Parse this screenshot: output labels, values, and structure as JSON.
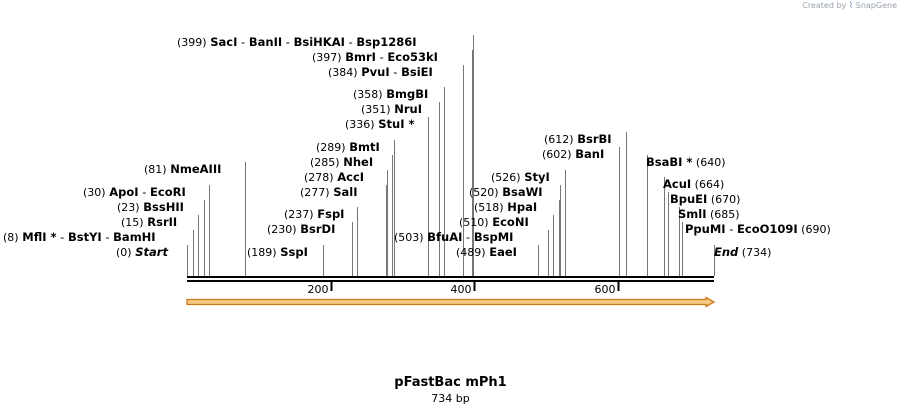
{
  "watermark": {
    "prefix": "Created by",
    "brand": "SnapGene"
  },
  "plasmid": {
    "name": "pFastBac mPh1",
    "length_label": "734 bp",
    "length": 734
  },
  "ruler": {
    "ticks": [
      200,
      400,
      600
    ]
  },
  "feature_arrow": {
    "start": 0,
    "end": 734,
    "fill": "#f5c983",
    "stroke": "#c97a1c"
  },
  "colors": {
    "line": "#000000",
    "leader": "#777777",
    "arrow_fill": "#f5c983",
    "arrow_stroke": "#c97a1c"
  },
  "labels": [
    {
      "pos": "(0)",
      "names": [
        [
          "Start",
          false
        ]
      ],
      "leaders": [
        0
      ],
      "italic": true
    },
    {
      "pos": "(8)",
      "names": [
        [
          "MflI",
          true
        ],
        [
          "BstYI",
          false
        ],
        [
          "BamHI",
          false
        ]
      ],
      "leaders": [
        8
      ]
    },
    {
      "pos": "(15)",
      "names": [
        [
          "RsrII",
          false
        ]
      ],
      "leaders": [
        15
      ]
    },
    {
      "pos": "(23)",
      "names": [
        [
          "BssHII",
          false
        ]
      ],
      "leaders": [
        23
      ]
    },
    {
      "pos": "(30)",
      "names": [
        [
          "ApoI",
          false
        ],
        [
          "EcoRI",
          false
        ]
      ],
      "leaders": [
        30
      ]
    },
    {
      "pos": "(81)",
      "names": [
        [
          "NmeAIII",
          false
        ]
      ],
      "leaders": [
        81
      ]
    },
    {
      "pos": "(189)",
      "names": [
        [
          "SspI",
          false
        ]
      ],
      "leaders": [
        189
      ]
    },
    {
      "pos": "(230)",
      "names": [
        [
          "BsrDI",
          false
        ]
      ],
      "leaders": [
        230
      ]
    },
    {
      "pos": "(237)",
      "names": [
        [
          "FspI",
          false
        ]
      ],
      "leaders": [
        237
      ]
    },
    {
      "pos": "(277)",
      "names": [
        [
          "SalI",
          false
        ]
      ],
      "leaders": [
        277
      ]
    },
    {
      "pos": "(278)",
      "names": [
        [
          "AccI",
          false
        ]
      ],
      "leaders": [
        278
      ]
    },
    {
      "pos": "(285)",
      "names": [
        [
          "NheI",
          false
        ]
      ],
      "leaders": [
        285
      ]
    },
    {
      "pos": "(289)",
      "names": [
        [
          "BmtI",
          false
        ]
      ],
      "leaders": [
        289
      ]
    },
    {
      "pos": "(336)",
      "names": [
        [
          "StuI",
          true
        ]
      ],
      "leaders": [
        336
      ]
    },
    {
      "pos": "(351)",
      "names": [
        [
          "NruI",
          false
        ]
      ],
      "leaders": [
        351
      ]
    },
    {
      "pos": "(358)",
      "names": [
        [
          "BmgBI",
          false
        ]
      ],
      "leaders": [
        358
      ]
    },
    {
      "pos": "(384)",
      "names": [
        [
          "PvuI",
          false
        ],
        [
          "BsiEI",
          false
        ]
      ],
      "leaders": [
        384
      ]
    },
    {
      "pos": "(397)",
      "names": [
        [
          "BmrI",
          false
        ],
        [
          "Eco53kI",
          false
        ]
      ],
      "leaders": [
        397
      ]
    },
    {
      "pos": "(399)",
      "names": [
        [
          "SacI",
          false
        ],
        [
          "BanII",
          false
        ],
        [
          "BsiHKAI",
          false
        ],
        [
          "Bsp1286I",
          false
        ]
      ],
      "leaders": [
        399
      ]
    },
    {
      "pos": "(503)",
      "names": [
        [
          "BfuAI",
          false
        ],
        [
          "BspMI",
          false
        ]
      ],
      "leaders": [
        503
      ]
    },
    {
      "pos": "(489)",
      "names": [
        [
          "EaeI",
          false
        ]
      ],
      "leaders": [
        489
      ]
    },
    {
      "pos": "(510)",
      "names": [
        [
          "EcoNI",
          false
        ]
      ],
      "leaders": [
        510
      ]
    },
    {
      "pos": "(518)",
      "names": [
        [
          "HpaI",
          false
        ]
      ],
      "leaders": [
        518
      ]
    },
    {
      "pos": "(520)",
      "names": [
        [
          "BsaWI",
          false
        ]
      ],
      "leaders": [
        520
      ]
    },
    {
      "pos": "(526)",
      "names": [
        [
          "StyI",
          false
        ]
      ],
      "leaders": [
        526
      ]
    },
    {
      "pos": "(602)",
      "names": [
        [
          "BanI",
          false
        ]
      ],
      "leaders": [
        602
      ]
    },
    {
      "pos": "(612)",
      "names": [
        [
          "BsrBI",
          false
        ]
      ],
      "leaders": [
        612
      ]
    },
    {
      "pos": "(640)",
      "names": [
        [
          "BsaBI",
          true
        ]
      ],
      "leaders": [
        640
      ]
    },
    {
      "pos": "(664)",
      "names": [
        [
          "AcuI",
          false
        ]
      ],
      "leaders": [
        664
      ]
    },
    {
      "pos": "(670)",
      "names": [
        [
          "BpuEI",
          false
        ]
      ],
      "leaders": [
        670
      ]
    },
    {
      "pos": "(685)",
      "names": [
        [
          "SmlI",
          false
        ]
      ],
      "leaders": [
        685
      ]
    },
    {
      "pos": "(690)",
      "names": [
        [
          "PpuMI",
          false
        ],
        [
          "EcoO109I",
          false
        ]
      ],
      "leaders": [
        690
      ]
    },
    {
      "pos": "(734)",
      "names": [
        [
          "End",
          false
        ]
      ],
      "leaders": [
        734
      ],
      "italic": true
    }
  ]
}
